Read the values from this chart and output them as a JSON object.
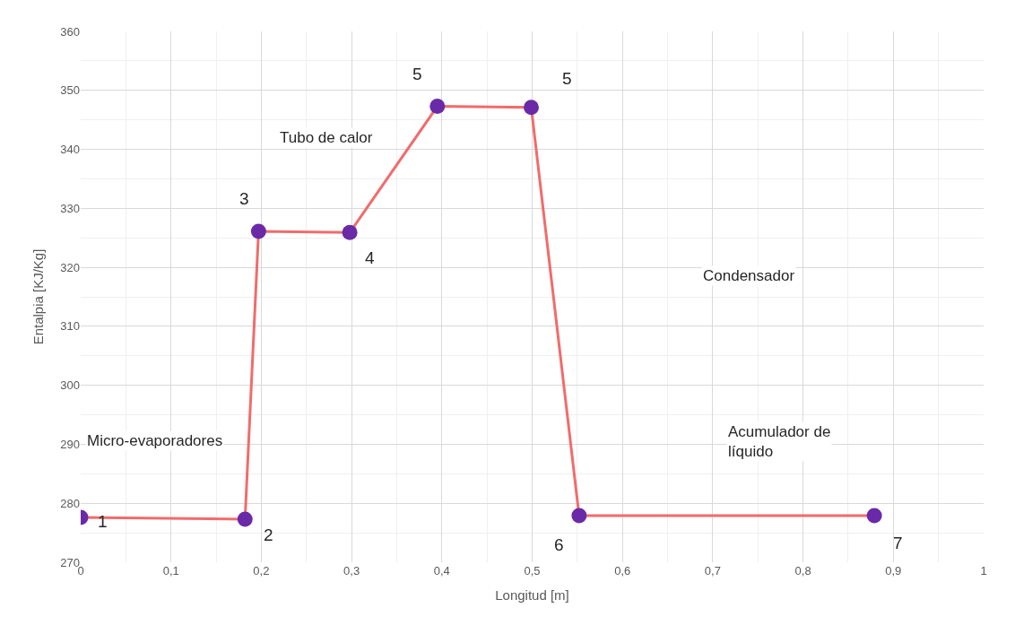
{
  "chart_data": {
    "type": "line",
    "xlabel": "Longitud [m]",
    "ylabel": "Entalpia [KJ/Kg]",
    "x": [
      0,
      0.182,
      0.197,
      0.298,
      0.395,
      0.499,
      0.552,
      0.879
    ],
    "series": [
      {
        "color": "#f26b6b",
        "colors": [
          "#6a2aa8",
          "#6a2aa8",
          "#6a2aa8",
          "#6a2aa8",
          "#6a2aa8",
          "#6a2aa8",
          "#6a2aa8",
          "#6a2aa8"
        ],
        "values": [
          277.6,
          277.3,
          326.1,
          325.9,
          347.3,
          347.1,
          277.9,
          277.9
        ]
      }
    ],
    "xlim": [
      0,
      1
    ],
    "ylim": [
      270,
      360
    ],
    "xticks": [
      0,
      {
        "value": 0.1,
        "label": "0,1"
      },
      {
        "value": 0.2,
        "label": "0,2"
      },
      {
        "value": 0.3,
        "label": "0,3"
      },
      {
        "value": 0.4,
        "label": "0,4"
      },
      {
        "value": 0.5,
        "label": "0,5"
      },
      {
        "value": 0.6,
        "label": "0,6"
      },
      {
        "value": 0.7,
        "label": "0,7"
      },
      {
        "value": 0.8,
        "label": "0,8"
      },
      {
        "value": 0.9,
        "label": "0,9"
      },
      1
    ],
    "yticks": [
      270,
      280,
      290,
      300,
      310,
      320,
      330,
      340,
      350,
      360
    ],
    "grid": true,
    "legend": false,
    "marker": "circle",
    "line_style": "solid",
    "annotations": [
      {
        "text": "1",
        "x": 0,
        "y": 277.6
      },
      {
        "text": "2",
        "x": 0.182,
        "y": 277.3
      },
      {
        "text": "3",
        "x": 0.197,
        "y": 326.1
      },
      {
        "text": "4",
        "x": 0.298,
        "y": 325.9
      },
      {
        "text": "5",
        "x": 0.395,
        "y": 347.3
      },
      {
        "text": "5",
        "x": 0.499,
        "y": 347.1
      },
      {
        "text": "6",
        "x": 0.552,
        "y": 277.9
      },
      {
        "text": "7",
        "x": 0.879,
        "y": 277.9
      },
      "Micro-evaporadores",
      "Tubo de calor",
      "Condensador",
      "Acumulador de\nlíquido"
    ]
  }
}
